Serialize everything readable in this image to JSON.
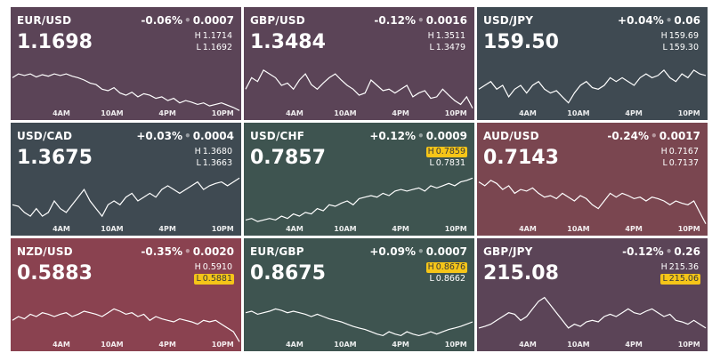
{
  "tiles": [
    {
      "pair": "EUR/USD",
      "pct": "-0.06%",
      "pips": "0.0007",
      "price": "1.1698",
      "high": "1.1714",
      "low": "1.1692",
      "hl_highlight": "",
      "color": "#5b4457",
      "axis": [
        "4AM",
        "10AM",
        "4PM",
        "10PM"
      ],
      "series": [
        0.45,
        0.5,
        0.48,
        0.5,
        0.46,
        0.49,
        0.47,
        0.5,
        0.48,
        0.5,
        0.47,
        0.45,
        0.42,
        0.38,
        0.36,
        0.3,
        0.28,
        0.32,
        0.25,
        0.22,
        0.26,
        0.2,
        0.24,
        0.22,
        0.18,
        0.2,
        0.15,
        0.18,
        0.12,
        0.15,
        0.13,
        0.1,
        0.12,
        0.08,
        0.1,
        0.12,
        0.09,
        0.06,
        0.02
      ]
    },
    {
      "pair": "GBP/USD",
      "pct": "-0.12%",
      "pips": "0.0016",
      "price": "1.3484",
      "high": "1.3511",
      "low": "1.3479",
      "hl_highlight": "",
      "color": "#5b4457",
      "axis": [
        "4AM",
        "10AM",
        "4PM",
        "10PM"
      ],
      "series": [
        0.3,
        0.45,
        0.4,
        0.55,
        0.5,
        0.45,
        0.35,
        0.38,
        0.3,
        0.42,
        0.5,
        0.36,
        0.3,
        0.38,
        0.45,
        0.5,
        0.42,
        0.35,
        0.3,
        0.22,
        0.25,
        0.42,
        0.35,
        0.28,
        0.3,
        0.25,
        0.3,
        0.35,
        0.2,
        0.25,
        0.28,
        0.18,
        0.2,
        0.3,
        0.22,
        0.15,
        0.1,
        0.2,
        0.05
      ]
    },
    {
      "pair": "USD/JPY",
      "pct": "+0.04%",
      "pips": "0.06",
      "price": "159.50",
      "high": "159.69",
      "low": "159.30",
      "hl_highlight": "",
      "color": "#3f4a52",
      "axis": [
        "4AM",
        "10AM",
        "4PM",
        "10PM"
      ],
      "series": [
        0.3,
        0.35,
        0.4,
        0.3,
        0.35,
        0.2,
        0.3,
        0.35,
        0.25,
        0.35,
        0.4,
        0.3,
        0.25,
        0.28,
        0.2,
        0.12,
        0.25,
        0.35,
        0.4,
        0.32,
        0.3,
        0.35,
        0.45,
        0.4,
        0.45,
        0.4,
        0.35,
        0.45,
        0.5,
        0.45,
        0.48,
        0.55,
        0.45,
        0.4,
        0.5,
        0.45,
        0.55,
        0.5,
        0.48
      ]
    },
    {
      "pair": "USD/CAD",
      "pct": "+0.03%",
      "pips": "0.0004",
      "price": "1.3675",
      "high": "1.3680",
      "low": "1.3663",
      "hl_highlight": "",
      "color": "#3f4a52",
      "axis": [
        "4AM",
        "10AM",
        "4PM",
        "10PM"
      ],
      "series": [
        0.3,
        0.28,
        0.2,
        0.15,
        0.25,
        0.15,
        0.2,
        0.35,
        0.25,
        0.2,
        0.3,
        0.4,
        0.5,
        0.35,
        0.25,
        0.15,
        0.3,
        0.35,
        0.3,
        0.4,
        0.45,
        0.35,
        0.4,
        0.45,
        0.4,
        0.5,
        0.55,
        0.5,
        0.45,
        0.5,
        0.55,
        0.6,
        0.5,
        0.55,
        0.58,
        0.6,
        0.55,
        0.6,
        0.65
      ]
    },
    {
      "pair": "USD/CHF",
      "pct": "+0.12%",
      "pips": "0.0009",
      "price": "0.7857",
      "high": "0.7859",
      "low": "0.7831",
      "hl_highlight": "high",
      "color": "#3e5450",
      "axis": [
        "4AM",
        "10AM",
        "4PM",
        "10PM"
      ],
      "series": [
        0.1,
        0.12,
        0.08,
        0.1,
        0.12,
        0.1,
        0.15,
        0.12,
        0.18,
        0.15,
        0.2,
        0.18,
        0.25,
        0.22,
        0.3,
        0.28,
        0.32,
        0.35,
        0.3,
        0.38,
        0.4,
        0.42,
        0.4,
        0.45,
        0.42,
        0.48,
        0.5,
        0.48,
        0.5,
        0.52,
        0.48,
        0.55,
        0.52,
        0.55,
        0.58,
        0.55,
        0.6,
        0.62,
        0.65
      ]
    },
    {
      "pair": "AUD/USD",
      "pct": "-0.24%",
      "pips": "0.0017",
      "price": "0.7143",
      "high": "0.7167",
      "low": "0.7137",
      "hl_highlight": "",
      "color": "#7a4650",
      "axis": [
        "4AM",
        "10AM",
        "4PM",
        "10PM"
      ],
      "series": [
        0.6,
        0.55,
        0.62,
        0.58,
        0.5,
        0.55,
        0.45,
        0.5,
        0.48,
        0.52,
        0.45,
        0.4,
        0.42,
        0.38,
        0.45,
        0.4,
        0.35,
        0.42,
        0.38,
        0.3,
        0.25,
        0.35,
        0.45,
        0.4,
        0.45,
        0.42,
        0.38,
        0.4,
        0.35,
        0.4,
        0.38,
        0.35,
        0.3,
        0.35,
        0.32,
        0.3,
        0.35,
        0.2,
        0.05
      ]
    },
    {
      "pair": "NZD/USD",
      "pct": "-0.35%",
      "pips": "0.0020",
      "price": "0.5883",
      "high": "0.5910",
      "low": "0.5881",
      "hl_highlight": "low",
      "color": "#8a4250",
      "axis": [
        "4AM",
        "10AM",
        "4PM",
        "10PM"
      ],
      "series": [
        0.3,
        0.35,
        0.32,
        0.38,
        0.35,
        0.4,
        0.38,
        0.35,
        0.38,
        0.4,
        0.35,
        0.38,
        0.42,
        0.4,
        0.38,
        0.35,
        0.4,
        0.45,
        0.42,
        0.38,
        0.4,
        0.35,
        0.38,
        0.3,
        0.35,
        0.32,
        0.3,
        0.28,
        0.32,
        0.3,
        0.28,
        0.25,
        0.3,
        0.28,
        0.3,
        0.25,
        0.2,
        0.15,
        0.02
      ]
    },
    {
      "pair": "EUR/GBP",
      "pct": "+0.09%",
      "pips": "0.0007",
      "price": "0.8675",
      "high": "0.8676",
      "low": "0.8662",
      "hl_highlight": "high",
      "color": "#3e5450",
      "axis": [
        "4AM",
        "10AM",
        "4PM",
        "10PM"
      ],
      "series": [
        0.4,
        0.42,
        0.38,
        0.4,
        0.42,
        0.45,
        0.43,
        0.4,
        0.42,
        0.4,
        0.38,
        0.35,
        0.38,
        0.35,
        0.32,
        0.3,
        0.28,
        0.25,
        0.22,
        0.2,
        0.18,
        0.15,
        0.12,
        0.1,
        0.15,
        0.12,
        0.1,
        0.15,
        0.12,
        0.1,
        0.12,
        0.15,
        0.12,
        0.15,
        0.18,
        0.2,
        0.22,
        0.25,
        0.28
      ]
    },
    {
      "pair": "GBP/JPY",
      "pct": "-0.12%",
      "pips": "0.26",
      "price": "215.08",
      "high": "215.36",
      "low": "215.06",
      "hl_highlight": "low",
      "color": "#5b4457",
      "axis": [
        "4AM",
        "10AM",
        "4PM",
        "10PM"
      ],
      "series": [
        0.2,
        0.22,
        0.25,
        0.3,
        0.35,
        0.4,
        0.38,
        0.3,
        0.35,
        0.45,
        0.55,
        0.6,
        0.5,
        0.4,
        0.3,
        0.2,
        0.25,
        0.22,
        0.28,
        0.3,
        0.28,
        0.35,
        0.38,
        0.35,
        0.4,
        0.45,
        0.4,
        0.38,
        0.42,
        0.45,
        0.4,
        0.35,
        0.38,
        0.3,
        0.28,
        0.25,
        0.3,
        0.25,
        0.2
      ]
    }
  ]
}
